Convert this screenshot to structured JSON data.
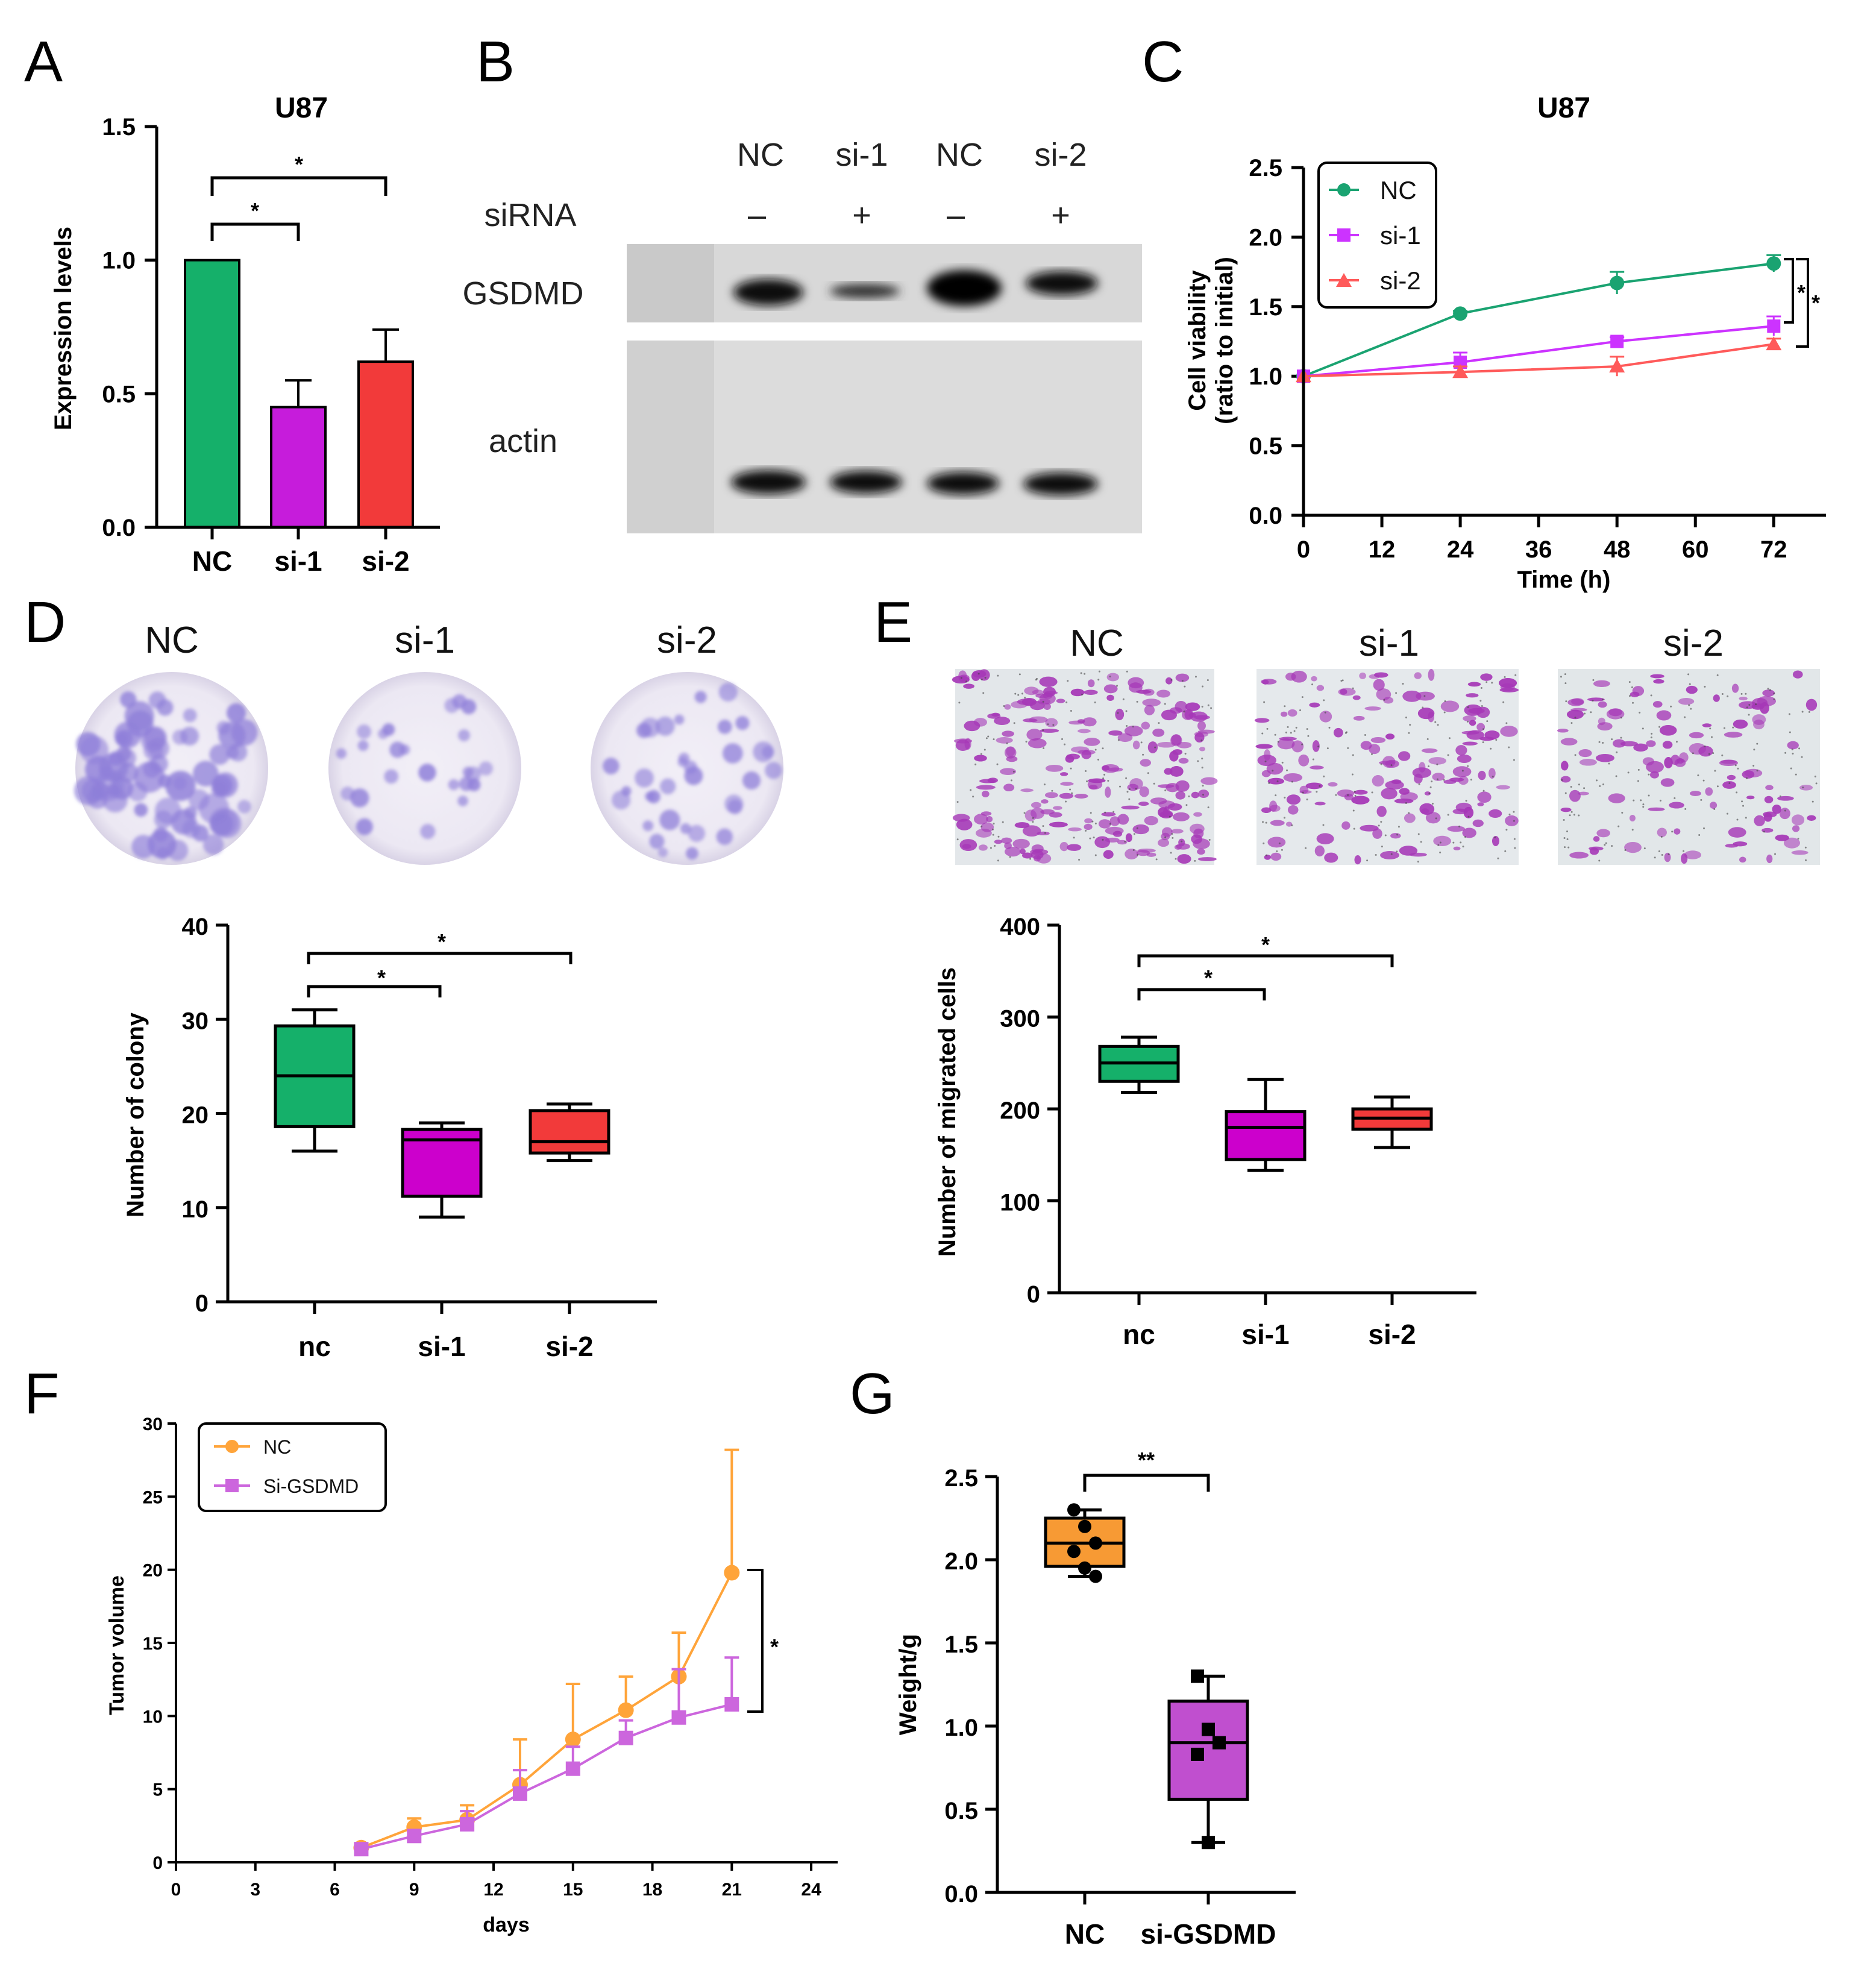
{
  "panel_labels": [
    "A",
    "B",
    "C",
    "D",
    "E",
    "F",
    "G"
  ],
  "colors": {
    "nc_green": "#15B06A",
    "si1_magenta": "#C61CDB",
    "si2_red": "#F23A3A",
    "line_nc": "#1AA371",
    "line_si1": "#CC33FF",
    "line_si2": "#FF5A5A",
    "f_nc": "#FFA43A",
    "f_si": "#CC66DD",
    "g_nc": "#F79A34",
    "g_si": "#C04FCF",
    "box_si1": "#CC00CC"
  },
  "chart_data": [
    {
      "id": "A",
      "type": "bar",
      "title": "U87",
      "ylabel": "Expression levels",
      "xlabel": "",
      "categories": [
        "NC",
        "si-1",
        "si-2"
      ],
      "values": [
        1.0,
        0.45,
        0.62
      ],
      "errors": [
        0,
        0.1,
        0.12
      ],
      "ylim": [
        0,
        1.5
      ],
      "yticks": [
        "0.0",
        "0.5",
        "1.0",
        "1.5"
      ],
      "yticks_num": [
        0,
        0.5,
        1.0,
        1.5
      ],
      "significance": [
        {
          "from": "NC",
          "to": "si-1",
          "label": "*"
        },
        {
          "from": "NC",
          "to": "si-2",
          "label": "*"
        }
      ]
    },
    {
      "id": "C",
      "type": "line",
      "title": "U87",
      "ylabel": "Cell viability",
      "ylabel2": "(ratio to initial)",
      "xlabel": "Time (h)",
      "x": [
        0,
        24,
        48,
        72
      ],
      "xticks": [
        "0",
        "12",
        "24",
        "36",
        "48",
        "60",
        "72"
      ],
      "xticks_num": [
        0,
        12,
        24,
        36,
        48,
        60,
        72
      ],
      "xlim": [
        0,
        80
      ],
      "ylim": [
        0,
        2.5
      ],
      "yticks": [
        "0.0",
        "0.5",
        "1.0",
        "1.5",
        "2.0",
        "2.5"
      ],
      "yticks_num": [
        0,
        0.5,
        1.0,
        1.5,
        2.0,
        2.5
      ],
      "series": [
        {
          "name": "NC",
          "values": [
            1.0,
            1.45,
            1.67,
            1.81
          ],
          "errors": [
            0,
            0.02,
            0.08,
            0.06
          ]
        },
        {
          "name": "si-1",
          "values": [
            1.0,
            1.1,
            1.25,
            1.36
          ],
          "errors": [
            0,
            0.07,
            0.03,
            0.07
          ]
        },
        {
          "name": "si-2",
          "values": [
            1.0,
            1.03,
            1.07,
            1.23
          ],
          "errors": [
            0,
            0.04,
            0.07,
            0.04
          ]
        }
      ],
      "legend": [
        "NC",
        "si-1",
        "si-2"
      ],
      "significance_labels": [
        "*",
        "*"
      ]
    },
    {
      "id": "D",
      "type": "box",
      "ylabel": "Number of colony",
      "categories": [
        "nc",
        "si-1",
        "si-2"
      ],
      "ylim": [
        0,
        40
      ],
      "yticks": [
        "0",
        "10",
        "20",
        "30",
        "40"
      ],
      "yticks_num": [
        0,
        10,
        20,
        30,
        40
      ],
      "boxes": [
        {
          "min": 16,
          "q1": 18.6,
          "median": 24,
          "q3": 29.3,
          "max": 31
        },
        {
          "min": 9,
          "q1": 11.2,
          "median": 17.2,
          "q3": 18.3,
          "max": 19
        },
        {
          "min": 15,
          "q1": 15.8,
          "median": 17,
          "q3": 20.3,
          "max": 21
        }
      ],
      "significance": [
        "*",
        "*"
      ]
    },
    {
      "id": "E",
      "type": "box",
      "ylabel": "Number of migrated cells",
      "categories": [
        "nc",
        "si-1",
        "si-2"
      ],
      "ylim": [
        0,
        400
      ],
      "yticks": [
        "0",
        "100",
        "200",
        "300",
        "400"
      ],
      "yticks_num": [
        0,
        100,
        200,
        300,
        400
      ],
      "boxes": [
        {
          "min": 218,
          "q1": 230,
          "median": 250,
          "q3": 268,
          "max": 278
        },
        {
          "min": 133,
          "q1": 145,
          "median": 180,
          "q3": 197,
          "max": 232
        },
        {
          "min": 158,
          "q1": 178,
          "median": 190,
          "q3": 200,
          "max": 213
        }
      ],
      "significance": [
        "*",
        "*"
      ]
    },
    {
      "id": "F",
      "type": "line",
      "ylabel": "Tumor volume",
      "xlabel": "days",
      "x": [
        7,
        9,
        11,
        13,
        15,
        17,
        19,
        21
      ],
      "xticks": [
        "0",
        "3",
        "6",
        "9",
        "12",
        "15",
        "18",
        "21",
        "24"
      ],
      "xticks_num": [
        0,
        3,
        6,
        9,
        12,
        15,
        18,
        21,
        24
      ],
      "xlim": [
        0,
        25
      ],
      "ylim": [
        0,
        30
      ],
      "yticks": [
        "0",
        "5",
        "10",
        "15",
        "20",
        "25",
        "30"
      ],
      "yticks_num": [
        0,
        5,
        10,
        15,
        20,
        25,
        30
      ],
      "series": [
        {
          "name": "NC",
          "values": [
            1.0,
            2.4,
            2.9,
            5.3,
            8.4,
            10.4,
            12.7,
            19.8
          ],
          "errors": [
            0.3,
            0.6,
            1.0,
            3.1,
            3.8,
            2.3,
            3.0,
            8.4
          ]
        },
        {
          "name": "Si-GSDMD",
          "values": [
            0.9,
            1.8,
            2.6,
            4.7,
            6.4,
            8.5,
            9.9,
            10.8
          ],
          "errors": [
            0.2,
            0.4,
            0.9,
            1.6,
            1.5,
            1.2,
            3.3,
            3.2
          ]
        }
      ],
      "legend": [
        "NC",
        "Si-GSDMD"
      ],
      "significance_label": "*"
    },
    {
      "id": "G",
      "type": "box",
      "ylabel": "Weight/g",
      "categories": [
        "NC",
        "si-GSDMD"
      ],
      "ylim": [
        0,
        2.5
      ],
      "yticks": [
        "0.0",
        "0.5",
        "1.0",
        "1.5",
        "2.0",
        "2.5"
      ],
      "yticks_num": [
        0,
        0.5,
        1.0,
        1.5,
        2.0,
        2.5
      ],
      "boxes": [
        {
          "min": 1.9,
          "q1": 1.96,
          "median": 2.1,
          "q3": 2.25,
          "max": 2.3,
          "points": [
            2.3,
            2.2,
            2.1,
            2.05,
            1.95,
            1.9
          ]
        },
        {
          "min": 0.3,
          "q1": 0.56,
          "median": 0.9,
          "q3": 1.15,
          "max": 1.3,
          "points": [
            1.3,
            0.98,
            0.9,
            0.83,
            0.3
          ]
        }
      ],
      "significance": "**"
    }
  ],
  "western_blot": {
    "lanes": [
      "NC",
      "si-1",
      "NC",
      "si-2"
    ],
    "sirna_row_label": "siRNA",
    "sirna_marks": [
      "–",
      "+",
      "–",
      "+"
    ],
    "rows": [
      "GSDMD",
      "actin"
    ]
  },
  "colony_images": {
    "labels": [
      "NC",
      "si-1",
      "si-2"
    ]
  },
  "migration_images": {
    "labels": [
      "NC",
      "si-1",
      "si-2"
    ]
  }
}
